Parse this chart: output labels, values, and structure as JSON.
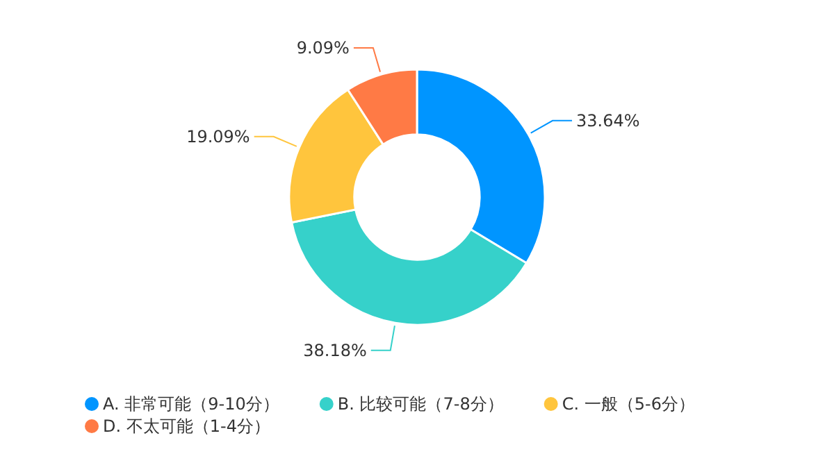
{
  "chart_data": {
    "type": "donut",
    "categories": [
      "A. 非常可能（9-10分）",
      "B. 比较可能（7-8分）",
      "C. 一般（5-6分）",
      "D. 不太可能（1-4分）"
    ],
    "values": [
      33.64,
      38.18,
      19.09,
      9.09
    ],
    "value_labels": [
      "33.64%",
      "38.18%",
      "19.09%",
      "9.09%"
    ],
    "colors": [
      "#0095ff",
      "#36d1ca",
      "#ffc53d",
      "#ff7a45"
    ],
    "legend": "bottom"
  }
}
